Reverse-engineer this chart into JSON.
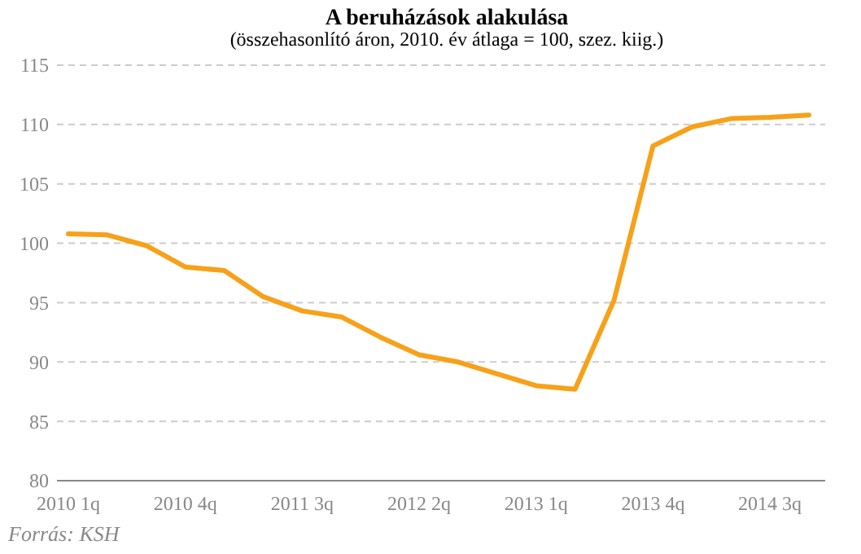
{
  "chart_data": {
    "type": "line",
    "title": "A beruházások alakulása",
    "subtitle": "(összehasonlító áron, 2010. év átlaga = 100, szez. kiig.)",
    "categories": [
      "2010 1q",
      null,
      null,
      "2010 4q",
      null,
      null,
      "2011 3q",
      null,
      null,
      "2012 2q",
      null,
      null,
      "2013 1q",
      null,
      null,
      "2013 4q",
      null,
      null,
      "2014 3q",
      null
    ],
    "series": [
      {
        "color": "#f7a11a",
        "values": [
          100.8,
          100.7,
          99.8,
          98.0,
          97.7,
          95.5,
          94.3,
          93.8,
          92.1,
          90.6,
          90.0,
          89.0,
          88.0,
          87.7,
          95.2,
          108.2,
          109.8,
          110.5,
          110.6,
          110.8
        ]
      }
    ],
    "ylim": [
      80,
      115
    ],
    "yticks": [
      80,
      85,
      90,
      95,
      100,
      105,
      110,
      115
    ],
    "grid": "y",
    "marker": "none",
    "line_style": "solid",
    "annotations": [
      "Forrás: KSH"
    ]
  }
}
